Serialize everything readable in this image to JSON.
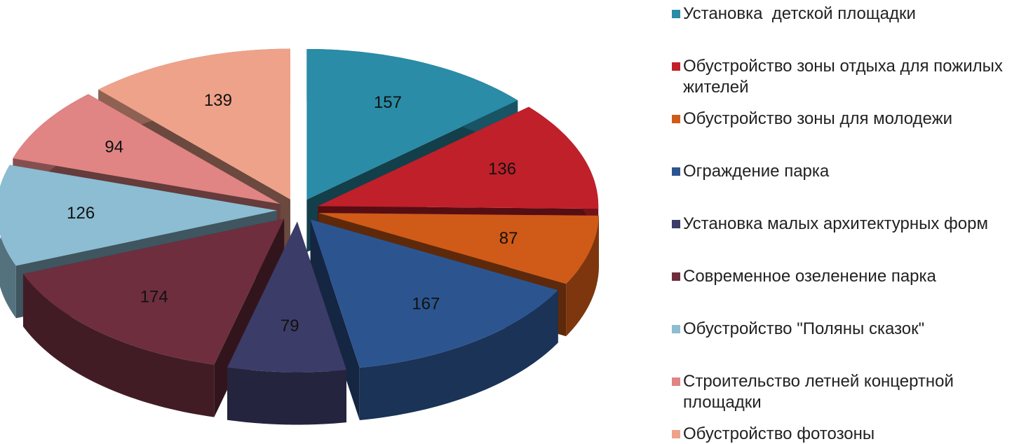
{
  "chart_data": {
    "type": "pie3d",
    "categories": [
      "Установка  детской площадки",
      "Обустройство зоны отдыха для пожилых жителей",
      "Обустройство зоны для молодежи",
      "Ограждение парка",
      "Установка малых архитектурных форм",
      "Современное озеленение парка",
      "Обустройство \"Поляны сказок\"",
      "Строительство летней концертной площадки",
      "Обустройство фотозоны"
    ],
    "values": [
      157,
      136,
      87,
      167,
      79,
      174,
      126,
      94,
      139
    ],
    "colors": [
      "#2a8ca6",
      "#c0202a",
      "#d05a18",
      "#2c5590",
      "#3c3c68",
      "#6e2e3e",
      "#8cbdd2",
      "#e08484",
      "#eea28a"
    ],
    "legend": "right"
  }
}
